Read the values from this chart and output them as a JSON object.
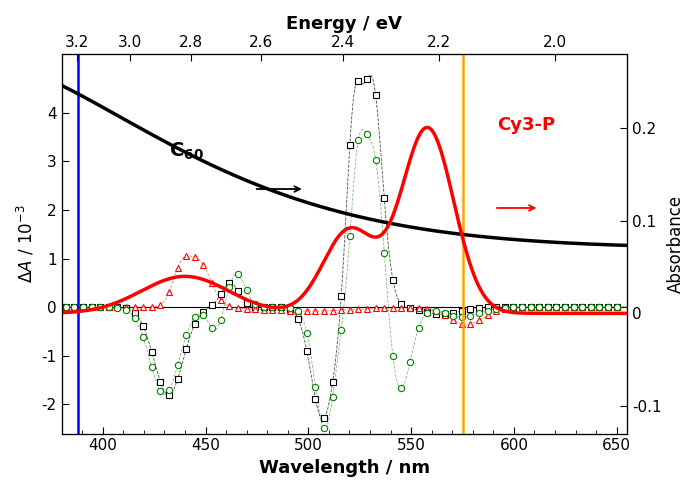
{
  "xlim": [
    380,
    655
  ],
  "ylim_left": [
    -0.0026,
    0.0052
  ],
  "ylim_right": [
    -0.13,
    0.28
  ],
  "xlabel": "Wavelength / nm",
  "ylabel_left": "dA / 10-3",
  "ylabel_right": "Absorbance",
  "top_xlabel": "Energy / eV",
  "top_xticks": [
    3.2,
    3.0,
    2.8,
    2.6,
    2.4,
    2.2,
    2.0
  ],
  "blue_vline": 388,
  "orange_vline": 575,
  "background_color": "#ffffff",
  "left_yticks": [
    -2,
    -1,
    0,
    1,
    2,
    3,
    4
  ],
  "right_yticks": [
    -0.1,
    0,
    0.1,
    0.2
  ]
}
